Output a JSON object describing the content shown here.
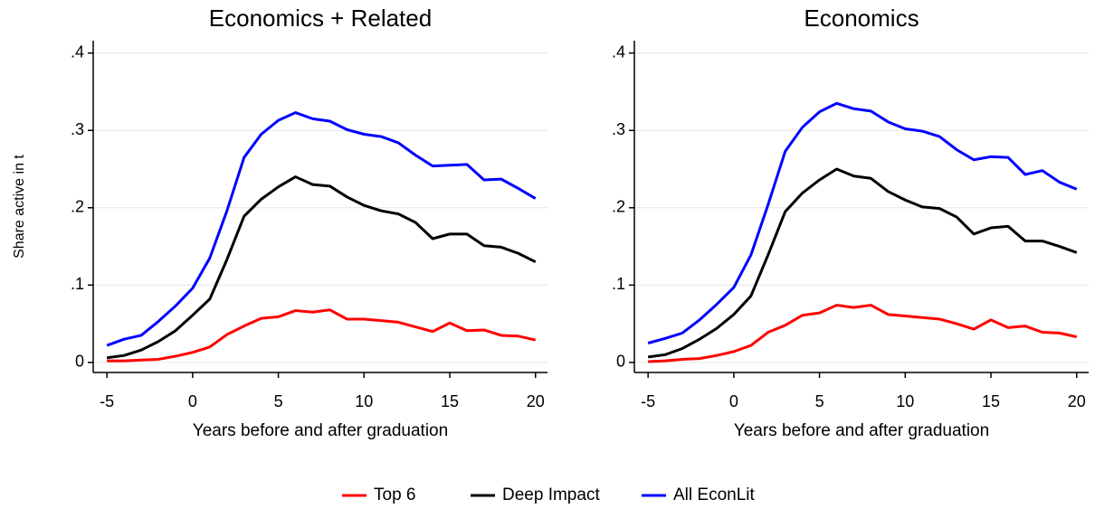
{
  "chart_data": [
    {
      "type": "line",
      "title": "Economics + Related",
      "xlabel": "Years before and after graduation",
      "ylabel": "Share active in t",
      "x": [
        -5,
        -4,
        -3,
        -2,
        -1,
        0,
        1,
        2,
        3,
        4,
        5,
        6,
        7,
        8,
        9,
        10,
        11,
        12,
        13,
        14,
        15,
        16,
        17,
        18,
        19,
        20
      ],
      "xlim": [
        -5.8,
        20.7
      ],
      "xticks": [
        -5,
        0,
        5,
        10,
        15,
        20
      ],
      "ylim": [
        -0.013,
        0.416
      ],
      "yticks": [
        0,
        {
          "value": 0.1,
          "label": ".1"
        },
        {
          "value": 0.2,
          "label": ".2"
        },
        {
          "value": 0.3,
          "label": ".3"
        },
        {
          "value": 0.4,
          "label": ".4"
        }
      ],
      "grid": true,
      "legend": "bottom",
      "series": [
        {
          "name": "Top 6",
          "color": "#ff0000",
          "values": [
            0.002,
            0.002,
            0.003,
            0.004,
            0.008,
            0.013,
            0.02,
            0.036,
            0.047,
            0.057,
            0.059,
            0.067,
            0.065,
            0.068,
            0.056,
            0.056,
            0.054,
            0.052,
            0.046,
            0.04,
            0.051,
            0.041,
            0.042,
            0.035,
            0.034,
            0.029
          ]
        },
        {
          "name": "Deep Impact",
          "color": "#000000",
          "values": [
            0.006,
            0.009,
            0.016,
            0.027,
            0.041,
            0.061,
            0.082,
            0.133,
            0.189,
            0.211,
            0.227,
            0.24,
            0.23,
            0.228,
            0.214,
            0.203,
            0.196,
            0.192,
            0.181,
            0.16,
            0.166,
            0.166,
            0.151,
            0.149,
            0.141,
            0.13
          ]
        },
        {
          "name": "All EconLit",
          "color": "#0000ff",
          "values": [
            0.022,
            0.03,
            0.035,
            0.053,
            0.073,
            0.096,
            0.135,
            0.196,
            0.265,
            0.295,
            0.313,
            0.323,
            0.315,
            0.312,
            0.301,
            0.295,
            0.292,
            0.284,
            0.268,
            0.254,
            0.255,
            0.256,
            0.236,
            0.237,
            0.225,
            0.212
          ]
        }
      ]
    },
    {
      "type": "line",
      "title": "Economics",
      "xlabel": "Years before and after graduation",
      "x": [
        -5,
        -4,
        -3,
        -2,
        -1,
        0,
        1,
        2,
        3,
        4,
        5,
        6,
        7,
        8,
        9,
        10,
        11,
        12,
        13,
        14,
        15,
        16,
        17,
        18,
        19,
        20
      ],
      "xlim": [
        -5.8,
        20.7
      ],
      "xticks": [
        -5,
        0,
        5,
        10,
        15,
        20
      ],
      "ylim": [
        -0.013,
        0.416
      ],
      "yticks": [
        0,
        {
          "value": 0.1,
          "label": ".1"
        },
        {
          "value": 0.2,
          "label": ".2"
        },
        {
          "value": 0.3,
          "label": ".3"
        },
        {
          "value": 0.4,
          "label": ".4"
        }
      ],
      "grid": true,
      "series": [
        {
          "name": "Top 6",
          "color": "#ff0000",
          "values": [
            0.001,
            0.002,
            0.004,
            0.005,
            0.009,
            0.014,
            0.022,
            0.039,
            0.048,
            0.061,
            0.064,
            0.074,
            0.071,
            0.074,
            0.062,
            0.06,
            0.058,
            0.056,
            0.05,
            0.043,
            0.055,
            0.045,
            0.047,
            0.039,
            0.038,
            0.033
          ]
        },
        {
          "name": "Deep Impact",
          "color": "#000000",
          "values": [
            0.007,
            0.01,
            0.018,
            0.03,
            0.044,
            0.062,
            0.086,
            0.139,
            0.195,
            0.219,
            0.236,
            0.25,
            0.241,
            0.238,
            0.221,
            0.21,
            0.201,
            0.199,
            0.188,
            0.166,
            0.174,
            0.176,
            0.157,
            0.157,
            0.15,
            0.142
          ]
        },
        {
          "name": "All EconLit",
          "color": "#0000ff",
          "values": [
            0.025,
            0.031,
            0.038,
            0.055,
            0.075,
            0.097,
            0.139,
            0.204,
            0.273,
            0.304,
            0.324,
            0.335,
            0.328,
            0.325,
            0.311,
            0.302,
            0.299,
            0.292,
            0.275,
            0.262,
            0.266,
            0.265,
            0.243,
            0.248,
            0.233,
            0.224
          ]
        }
      ]
    }
  ]
}
